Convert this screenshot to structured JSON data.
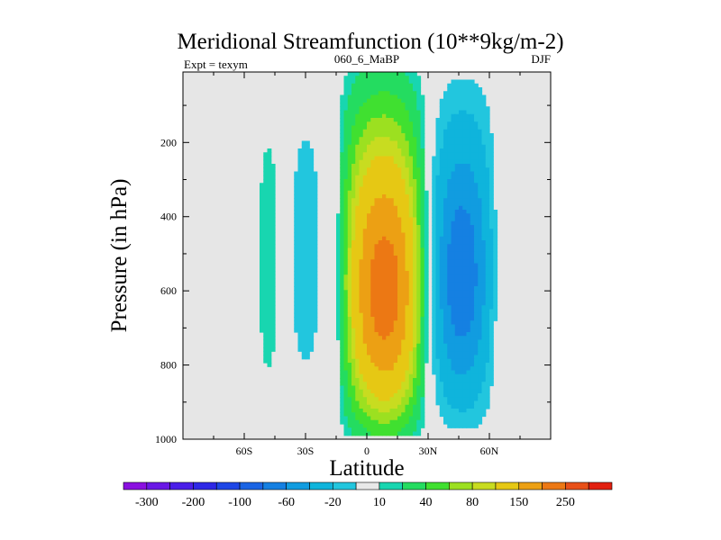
{
  "chart_data": {
    "type": "contour",
    "title": "Meridional Streamfunction (10**9kg/m-2)",
    "left_string": "Expt = texym",
    "center_string": "060_6_MaBP",
    "right_string": "DJF",
    "xlabel": "Latitude",
    "ylabel": "Pressure (in hPa)",
    "xlim": [
      -90,
      90
    ],
    "ylim": [
      1000,
      10
    ],
    "y_reversed": true,
    "x_ticks": [
      {
        "value": -60,
        "label": "60S"
      },
      {
        "value": -30,
        "label": "30S"
      },
      {
        "value": 0,
        "label": "0"
      },
      {
        "value": 30,
        "label": "30N"
      },
      {
        "value": 60,
        "label": "60N"
      }
    ],
    "y_ticks": [
      200,
      400,
      600,
      800,
      1000
    ],
    "background_color": "#e6e6e6",
    "grid": false,
    "levels": [
      -300,
      -250,
      -200,
      -150,
      -100,
      -80,
      -60,
      -40,
      -20,
      -10,
      10,
      20,
      40,
      60,
      80,
      100,
      150,
      200,
      250,
      300
    ],
    "colors": [
      "#8a10e0",
      "#6a18e6",
      "#4a1ee8",
      "#2e28e6",
      "#1e46e6",
      "#1a64e4",
      "#1580e2",
      "#119ce0",
      "#0fb4dc",
      "#22c6de",
      "#e8e8e8",
      "#18d6b0",
      "#24dc60",
      "#40e030",
      "#9ce020",
      "#c8dc20",
      "#e6c814",
      "#eca014",
      "#ec7814",
      "#e85018",
      "#e22010"
    ],
    "colorbar_labels": [
      {
        "boundary": 1,
        "label": "-300"
      },
      {
        "boundary": 3,
        "label": "-200"
      },
      {
        "boundary": 5,
        "label": "-100"
      },
      {
        "boundary": 7,
        "label": "-60"
      },
      {
        "boundary": 9,
        "label": "-20"
      },
      {
        "boundary": 11,
        "label": "10"
      },
      {
        "boundary": 13,
        "label": "40"
      },
      {
        "boundary": 15,
        "label": "80"
      },
      {
        "boundary": 17,
        "label": "150"
      },
      {
        "boundary": 19,
        "label": "250"
      }
    ],
    "cells": [
      {
        "name": "NH tropical cell",
        "sign": "positive",
        "lat_range": [
          -15,
          30
        ],
        "p_range": [
          10,
          990
        ],
        "peak_value": 250,
        "peak_lat": 10,
        "peak_p": 700
      },
      {
        "name": "SH extratropical cell",
        "sign": "positive",
        "lat_range": [
          -55,
          -42
        ],
        "p_range": [
          10,
          970
        ],
        "peak_value": 20,
        "peak_lat": -48,
        "peak_p": 550
      },
      {
        "name": "SH subtropical cell",
        "sign": "negative",
        "lat_range": [
          -40,
          -20
        ],
        "p_range": [
          10,
          970
        ],
        "peak_value": -20,
        "peak_lat": -30,
        "peak_p": 500
      },
      {
        "name": "NH extratropical cell",
        "sign": "negative",
        "lat_range": [
          30,
          65
        ],
        "p_range": [
          10,
          970
        ],
        "peak_value": -80,
        "peak_lat": 45,
        "peak_p": 630
      }
    ]
  }
}
